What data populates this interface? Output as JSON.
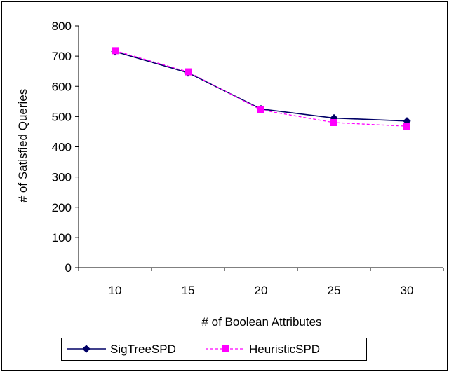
{
  "chart_data": {
    "type": "line",
    "title": "",
    "xlabel": "# of Boolean Attributes",
    "ylabel": "# of Satisfied Queries",
    "categories": [
      "10",
      "15",
      "20",
      "25",
      "30"
    ],
    "ylim": [
      0,
      800
    ],
    "yticks": [
      0,
      100,
      200,
      300,
      400,
      500,
      600,
      700,
      800
    ],
    "grid": false,
    "legend_position": "bottom",
    "series": [
      {
        "name": "SigTreeSPD",
        "values": [
          715,
          645,
          525,
          495,
          485
        ],
        "color": "#000066",
        "marker": "diamond",
        "line_style": "solid"
      },
      {
        "name": "HeuristicSPD",
        "values": [
          718,
          648,
          522,
          480,
          468
        ],
        "color": "#ff00ff",
        "marker": "square",
        "line_style": "dashed"
      }
    ]
  }
}
